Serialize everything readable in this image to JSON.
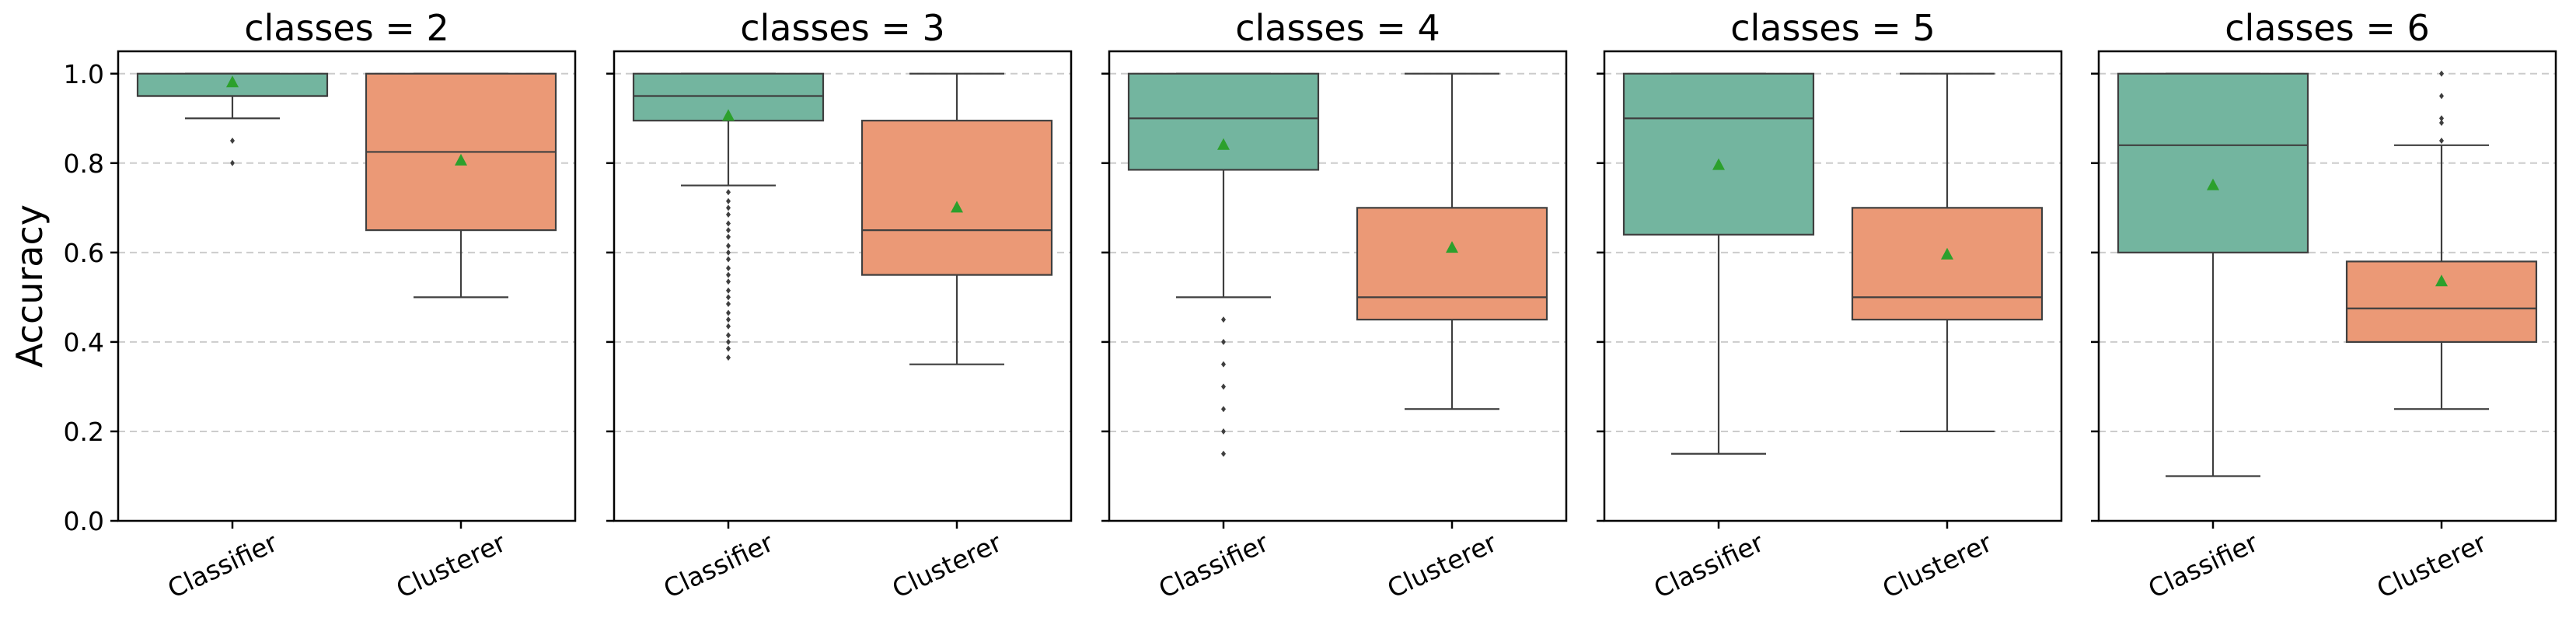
{
  "chart_data": {
    "type": "box",
    "ylabel": "Accuracy",
    "ylim": [
      0,
      1.05
    ],
    "yticks": [
      "0.0",
      "0.2",
      "0.4",
      "0.6",
      "0.8",
      "1.0"
    ],
    "ytick_values": [
      0,
      0.2,
      0.4,
      0.6,
      0.8,
      1.0
    ],
    "grid": "y-dashed",
    "categories": [
      "Classifier",
      "Clusterer"
    ],
    "colors": {
      "Classifier": "#73b59f",
      "Clusterer": "#eb9976",
      "mean_marker": "#2ca02c"
    },
    "panels": [
      {
        "title": "classes = 2",
        "boxes": [
          {
            "category": "Classifier",
            "q1": 0.95,
            "median": 0.95,
            "q3": 1.0,
            "whisker_low": 0.9,
            "whisker_high": 1.0,
            "mean": 0.98,
            "outliers": [
              0.85,
              0.8
            ]
          },
          {
            "category": "Clusterer",
            "q1": 0.65,
            "median": 0.825,
            "q3": 1.0,
            "whisker_low": 0.5,
            "whisker_high": 1.0,
            "mean": 0.805,
            "outliers": []
          }
        ]
      },
      {
        "title": "classes = 3",
        "boxes": [
          {
            "category": "Classifier",
            "q1": 0.895,
            "median": 0.95,
            "q3": 1.0,
            "whisker_low": 0.75,
            "whisker_high": 1.0,
            "mean": 0.905,
            "outliers": [
              0.735,
              0.715,
              0.7,
              0.685,
              0.665,
              0.65,
              0.635,
              0.615,
              0.6,
              0.585,
              0.565,
              0.55,
              0.535,
              0.515,
              0.5,
              0.485,
              0.465,
              0.45,
              0.435,
              0.415,
              0.4,
              0.385,
              0.365
            ]
          },
          {
            "category": "Clusterer",
            "q1": 0.55,
            "median": 0.65,
            "q3": 0.895,
            "whisker_low": 0.35,
            "whisker_high": 1.0,
            "mean": 0.7,
            "outliers": []
          }
        ]
      },
      {
        "title": "classes = 4",
        "boxes": [
          {
            "category": "Classifier",
            "q1": 0.785,
            "median": 0.9,
            "q3": 1.0,
            "whisker_low": 0.5,
            "whisker_high": 1.0,
            "mean": 0.84,
            "outliers": [
              0.45,
              0.4,
              0.35,
              0.3,
              0.25,
              0.2,
              0.15
            ]
          },
          {
            "category": "Clusterer",
            "q1": 0.45,
            "median": 0.5,
            "q3": 0.7,
            "whisker_low": 0.25,
            "whisker_high": 1.0,
            "mean": 0.61,
            "outliers": []
          }
        ]
      },
      {
        "title": "classes = 5",
        "boxes": [
          {
            "category": "Classifier",
            "q1": 0.64,
            "median": 0.9,
            "q3": 1.0,
            "whisker_low": 0.15,
            "whisker_high": 1.0,
            "mean": 0.795,
            "outliers": []
          },
          {
            "category": "Clusterer",
            "q1": 0.45,
            "median": 0.5,
            "q3": 0.7,
            "whisker_low": 0.2,
            "whisker_high": 1.0,
            "mean": 0.595,
            "outliers": []
          }
        ]
      },
      {
        "title": "classes = 6",
        "boxes": [
          {
            "category": "Classifier",
            "q1": 0.6,
            "median": 0.84,
            "q3": 1.0,
            "whisker_low": 0.1,
            "whisker_high": 1.0,
            "mean": 0.75,
            "outliers": []
          },
          {
            "category": "Clusterer",
            "q1": 0.4,
            "median": 0.475,
            "q3": 0.58,
            "whisker_low": 0.25,
            "whisker_high": 0.84,
            "mean": 0.535,
            "outliers": [
              1.0,
              0.95,
              0.9,
              0.89,
              0.85
            ]
          }
        ]
      }
    ]
  }
}
